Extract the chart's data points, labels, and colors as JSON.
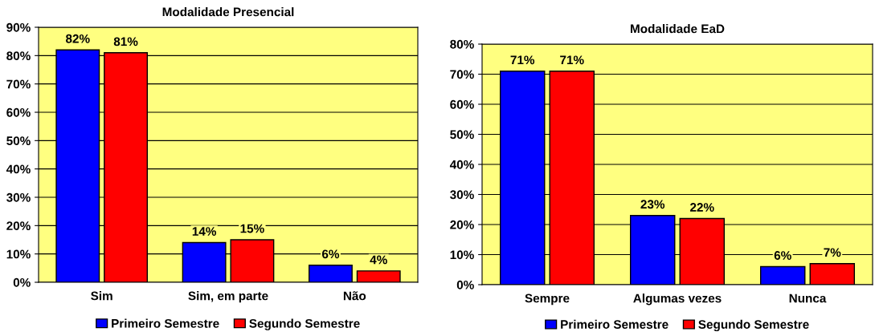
{
  "chart_data": [
    {
      "type": "bar",
      "title": "Modalidade Presencial",
      "categories": [
        "Sim",
        "Sim, em parte",
        "Não"
      ],
      "series": [
        {
          "name": "Primeiro Semestre",
          "color": "#0000ff",
          "values": [
            82,
            14,
            6
          ],
          "value_labels": [
            "82%",
            "14%",
            "6%"
          ]
        },
        {
          "name": "Segundo Semestre",
          "color": "#ff0000",
          "values": [
            81,
            15,
            4
          ],
          "value_labels": [
            "81%",
            "15%",
            "4%"
          ]
        }
      ],
      "ylim": [
        0,
        90
      ],
      "yticks": [
        {
          "value": 0,
          "label": "0%"
        },
        {
          "value": 10,
          "label": "10%"
        },
        {
          "value": 20,
          "label": "20%"
        },
        {
          "value": 30,
          "label": "30%"
        },
        {
          "value": 40,
          "label": "40%"
        },
        {
          "value": 50,
          "label": "50%"
        },
        {
          "value": 60,
          "label": "60%"
        },
        {
          "value": 70,
          "label": "70%"
        },
        {
          "value": 80,
          "label": "80%"
        },
        {
          "value": 90,
          "label": "90%"
        }
      ],
      "grid": "y",
      "legend": "bottom"
    },
    {
      "type": "bar",
      "title": "Modalidade EaD",
      "categories": [
        "Sempre",
        "Algumas vezes",
        "Nunca"
      ],
      "series": [
        {
          "name": "Primeiro Semestre",
          "color": "#0000ff",
          "values": [
            71,
            23,
            6
          ],
          "value_labels": [
            "71%",
            "23%",
            "6%"
          ]
        },
        {
          "name": "Segundo Semestre",
          "color": "#ff0000",
          "values": [
            71,
            22,
            7
          ],
          "value_labels": [
            "71%",
            "22%",
            "7%"
          ]
        }
      ],
      "ylim": [
        0,
        80
      ],
      "yticks": [
        {
          "value": 0,
          "label": "0%"
        },
        {
          "value": 10,
          "label": "10%"
        },
        {
          "value": 20,
          "label": "20%"
        },
        {
          "value": 30,
          "label": "30%"
        },
        {
          "value": 40,
          "label": "40%"
        },
        {
          "value": 50,
          "label": "50%"
        },
        {
          "value": 60,
          "label": "60%"
        },
        {
          "value": 70,
          "label": "70%"
        },
        {
          "value": 80,
          "label": "80%"
        }
      ],
      "grid": "y",
      "legend": "bottom"
    }
  ]
}
